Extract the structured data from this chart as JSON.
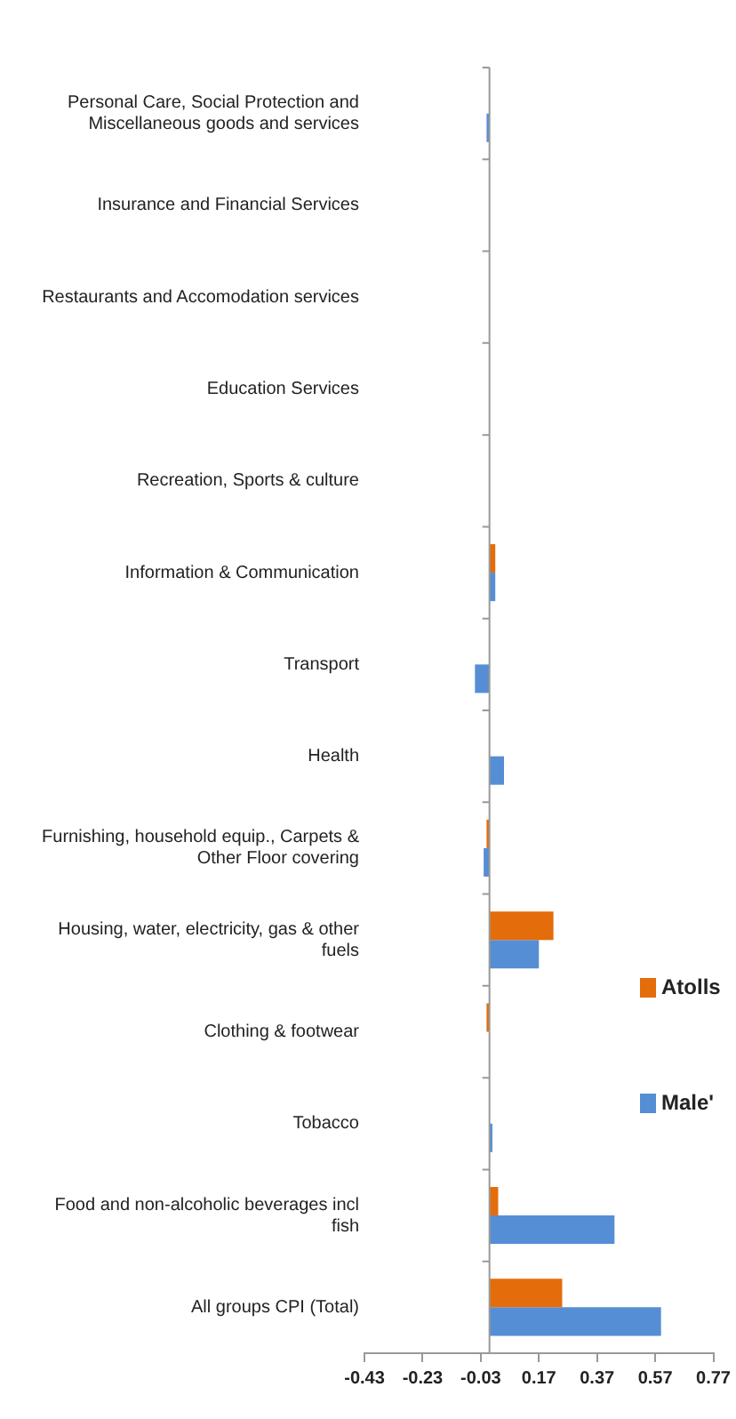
{
  "chart_data": {
    "type": "bar",
    "orientation": "horizontal",
    "categories": [
      "Personal Care, Social Protection and Miscellaneous goods and services",
      "Insurance and Financial Services",
      "Restaurants and Accomodation services",
      "Education Services",
      "Recreation, Sports & culture",
      "Information & Communication",
      "Transport",
      "Health",
      "Furnishing, household equip., Carpets & Other Floor covering",
      "Housing, water, electricity, gas & other fuels",
      "Clothing & footwear",
      "Tobacco",
      "Food and non-alcoholic beverages incl fish",
      "All groups CPI (Total)"
    ],
    "series": [
      {
        "name": "Atolls",
        "color": "#e46c0a",
        "values": [
          0,
          0,
          0,
          0,
          0,
          0.02,
          0,
          0,
          -0.01,
          0.22,
          -0.01,
          0,
          0.03,
          0.25
        ]
      },
      {
        "name": "Male'",
        "color": "#558ed5",
        "values": [
          -0.01,
          0,
          0,
          0,
          0,
          0.02,
          -0.05,
          0.05,
          -0.02,
          0.17,
          0,
          0.01,
          0.43,
          0.59
        ]
      }
    ],
    "xlim": [
      -0.43,
      0.77
    ],
    "xticks": [
      -0.43,
      -0.23,
      -0.03,
      0.17,
      0.37,
      0.57,
      0.77
    ],
    "grid": false,
    "legend": "right"
  }
}
